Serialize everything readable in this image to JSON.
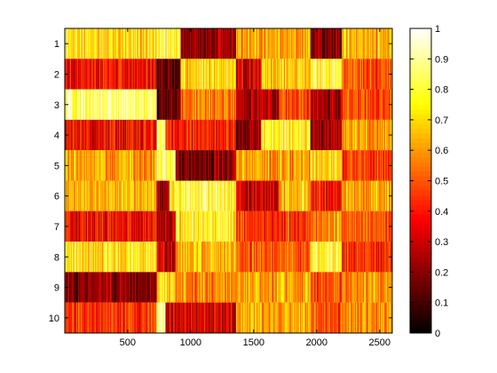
{
  "chart_data": {
    "type": "heatmap",
    "title": "",
    "xlabel": "",
    "ylabel": "",
    "colormap": "hot",
    "xlim": [
      1,
      2600
    ],
    "ylim": [
      0.5,
      10.5
    ],
    "x_ticks": [
      500,
      1000,
      1500,
      2000,
      2500
    ],
    "y_ticks": [
      1,
      2,
      3,
      4,
      5,
      6,
      7,
      8,
      9,
      10
    ],
    "colorbar": {
      "limits": [
        0,
        1
      ],
      "ticks": [
        "0",
        "0.1",
        "0.2",
        "0.3",
        "0.4",
        "0.5",
        "0.6",
        "0.7",
        "0.8",
        "0.9",
        "1"
      ]
    },
    "rows": [
      {
        "row": 1,
        "segments": [
          {
            "x0": 1,
            "x1": 730,
            "level": 0.72
          },
          {
            "x0": 730,
            "x1": 920,
            "level": 0.8
          },
          {
            "x0": 920,
            "x1": 1360,
            "level": 0.22
          },
          {
            "x0": 1360,
            "x1": 1950,
            "level": 0.62
          },
          {
            "x0": 1950,
            "x1": 2200,
            "level": 0.2
          },
          {
            "x0": 2200,
            "x1": 2600,
            "level": 0.65
          }
        ]
      },
      {
        "row": 2,
        "segments": [
          {
            "x0": 1,
            "x1": 730,
            "level": 0.38
          },
          {
            "x0": 730,
            "x1": 920,
            "level": 0.18
          },
          {
            "x0": 920,
            "x1": 1360,
            "level": 0.72
          },
          {
            "x0": 1360,
            "x1": 1560,
            "level": 0.32
          },
          {
            "x0": 1560,
            "x1": 1950,
            "level": 0.7
          },
          {
            "x0": 1950,
            "x1": 2200,
            "level": 0.82
          },
          {
            "x0": 2200,
            "x1": 2600,
            "level": 0.5
          }
        ]
      },
      {
        "row": 3,
        "segments": [
          {
            "x0": 1,
            "x1": 730,
            "level": 0.88
          },
          {
            "x0": 730,
            "x1": 920,
            "level": 0.15
          },
          {
            "x0": 920,
            "x1": 1360,
            "level": 0.55
          },
          {
            "x0": 1360,
            "x1": 1700,
            "level": 0.25
          },
          {
            "x0": 1700,
            "x1": 1950,
            "level": 0.48
          },
          {
            "x0": 1950,
            "x1": 2200,
            "level": 0.22
          },
          {
            "x0": 2200,
            "x1": 2600,
            "level": 0.48
          }
        ]
      },
      {
        "row": 4,
        "segments": [
          {
            "x0": 1,
            "x1": 730,
            "level": 0.36
          },
          {
            "x0": 730,
            "x1": 800,
            "level": 0.9
          },
          {
            "x0": 800,
            "x1": 1360,
            "level": 0.42
          },
          {
            "x0": 1360,
            "x1": 1560,
            "level": 0.2
          },
          {
            "x0": 1560,
            "x1": 1950,
            "level": 0.78
          },
          {
            "x0": 1950,
            "x1": 2200,
            "level": 0.25
          },
          {
            "x0": 2200,
            "x1": 2600,
            "level": 0.6
          }
        ]
      },
      {
        "row": 5,
        "segments": [
          {
            "x0": 1,
            "x1": 730,
            "level": 0.62
          },
          {
            "x0": 730,
            "x1": 880,
            "level": 0.85
          },
          {
            "x0": 880,
            "x1": 1360,
            "level": 0.2
          },
          {
            "x0": 1360,
            "x1": 1950,
            "level": 0.6
          },
          {
            "x0": 1950,
            "x1": 2200,
            "level": 0.72
          },
          {
            "x0": 2200,
            "x1": 2600,
            "level": 0.45
          }
        ]
      },
      {
        "row": 6,
        "segments": [
          {
            "x0": 1,
            "x1": 730,
            "level": 0.66
          },
          {
            "x0": 730,
            "x1": 830,
            "level": 0.2
          },
          {
            "x0": 830,
            "x1": 1360,
            "level": 0.8
          },
          {
            "x0": 1360,
            "x1": 1700,
            "level": 0.3
          },
          {
            "x0": 1700,
            "x1": 1950,
            "level": 0.68
          },
          {
            "x0": 1950,
            "x1": 2200,
            "level": 0.4
          },
          {
            "x0": 2200,
            "x1": 2600,
            "level": 0.62
          }
        ]
      },
      {
        "row": 7,
        "segments": [
          {
            "x0": 1,
            "x1": 730,
            "level": 0.38
          },
          {
            "x0": 730,
            "x1": 880,
            "level": 0.25
          },
          {
            "x0": 880,
            "x1": 1360,
            "level": 0.75
          },
          {
            "x0": 1360,
            "x1": 1950,
            "level": 0.45
          },
          {
            "x0": 1950,
            "x1": 2200,
            "level": 0.58
          },
          {
            "x0": 2200,
            "x1": 2600,
            "level": 0.5
          }
        ]
      },
      {
        "row": 8,
        "segments": [
          {
            "x0": 1,
            "x1": 730,
            "level": 0.72
          },
          {
            "x0": 730,
            "x1": 880,
            "level": 0.28
          },
          {
            "x0": 880,
            "x1": 1360,
            "level": 0.65
          },
          {
            "x0": 1360,
            "x1": 1950,
            "level": 0.5
          },
          {
            "x0": 1950,
            "x1": 2200,
            "level": 0.8
          },
          {
            "x0": 2200,
            "x1": 2600,
            "level": 0.45
          }
        ]
      },
      {
        "row": 9,
        "segments": [
          {
            "x0": 1,
            "x1": 730,
            "level": 0.22
          },
          {
            "x0": 730,
            "x1": 880,
            "level": 0.7
          },
          {
            "x0": 880,
            "x1": 1360,
            "level": 0.58
          },
          {
            "x0": 1360,
            "x1": 1950,
            "level": 0.62
          },
          {
            "x0": 1950,
            "x1": 2200,
            "level": 0.48
          },
          {
            "x0": 2200,
            "x1": 2600,
            "level": 0.6
          }
        ]
      },
      {
        "row": 10,
        "segments": [
          {
            "x0": 1,
            "x1": 730,
            "level": 0.45
          },
          {
            "x0": 730,
            "x1": 800,
            "level": 0.92
          },
          {
            "x0": 800,
            "x1": 1360,
            "level": 0.32
          },
          {
            "x0": 1360,
            "x1": 1950,
            "level": 0.62
          },
          {
            "x0": 1950,
            "x1": 2200,
            "level": 0.5
          },
          {
            "x0": 2200,
            "x1": 2600,
            "level": 0.58
          }
        ]
      }
    ]
  }
}
